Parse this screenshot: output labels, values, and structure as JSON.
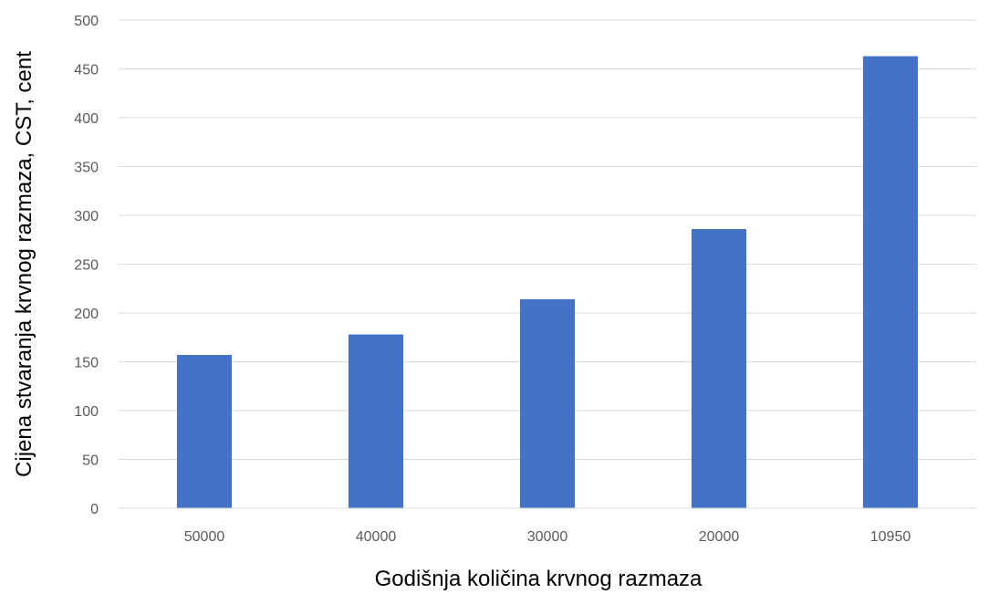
{
  "chart_data": {
    "type": "bar",
    "title": "",
    "xlabel": "Godišnja količina krvnog razmaza",
    "ylabel": "Cijena stvaranja krvnog razmaza, CST, cent",
    "categories": [
      "50000",
      "40000",
      "30000",
      "20000",
      "10950"
    ],
    "series": [
      {
        "values": [
          157,
          178,
          214,
          286,
          463
        ],
        "color": "#4472c4"
      }
    ],
    "ylim": [
      0,
      500
    ],
    "yticks": [
      0,
      50,
      100,
      150,
      200,
      250,
      300,
      350,
      400,
      450,
      500
    ],
    "grid": true,
    "legend": "none"
  }
}
